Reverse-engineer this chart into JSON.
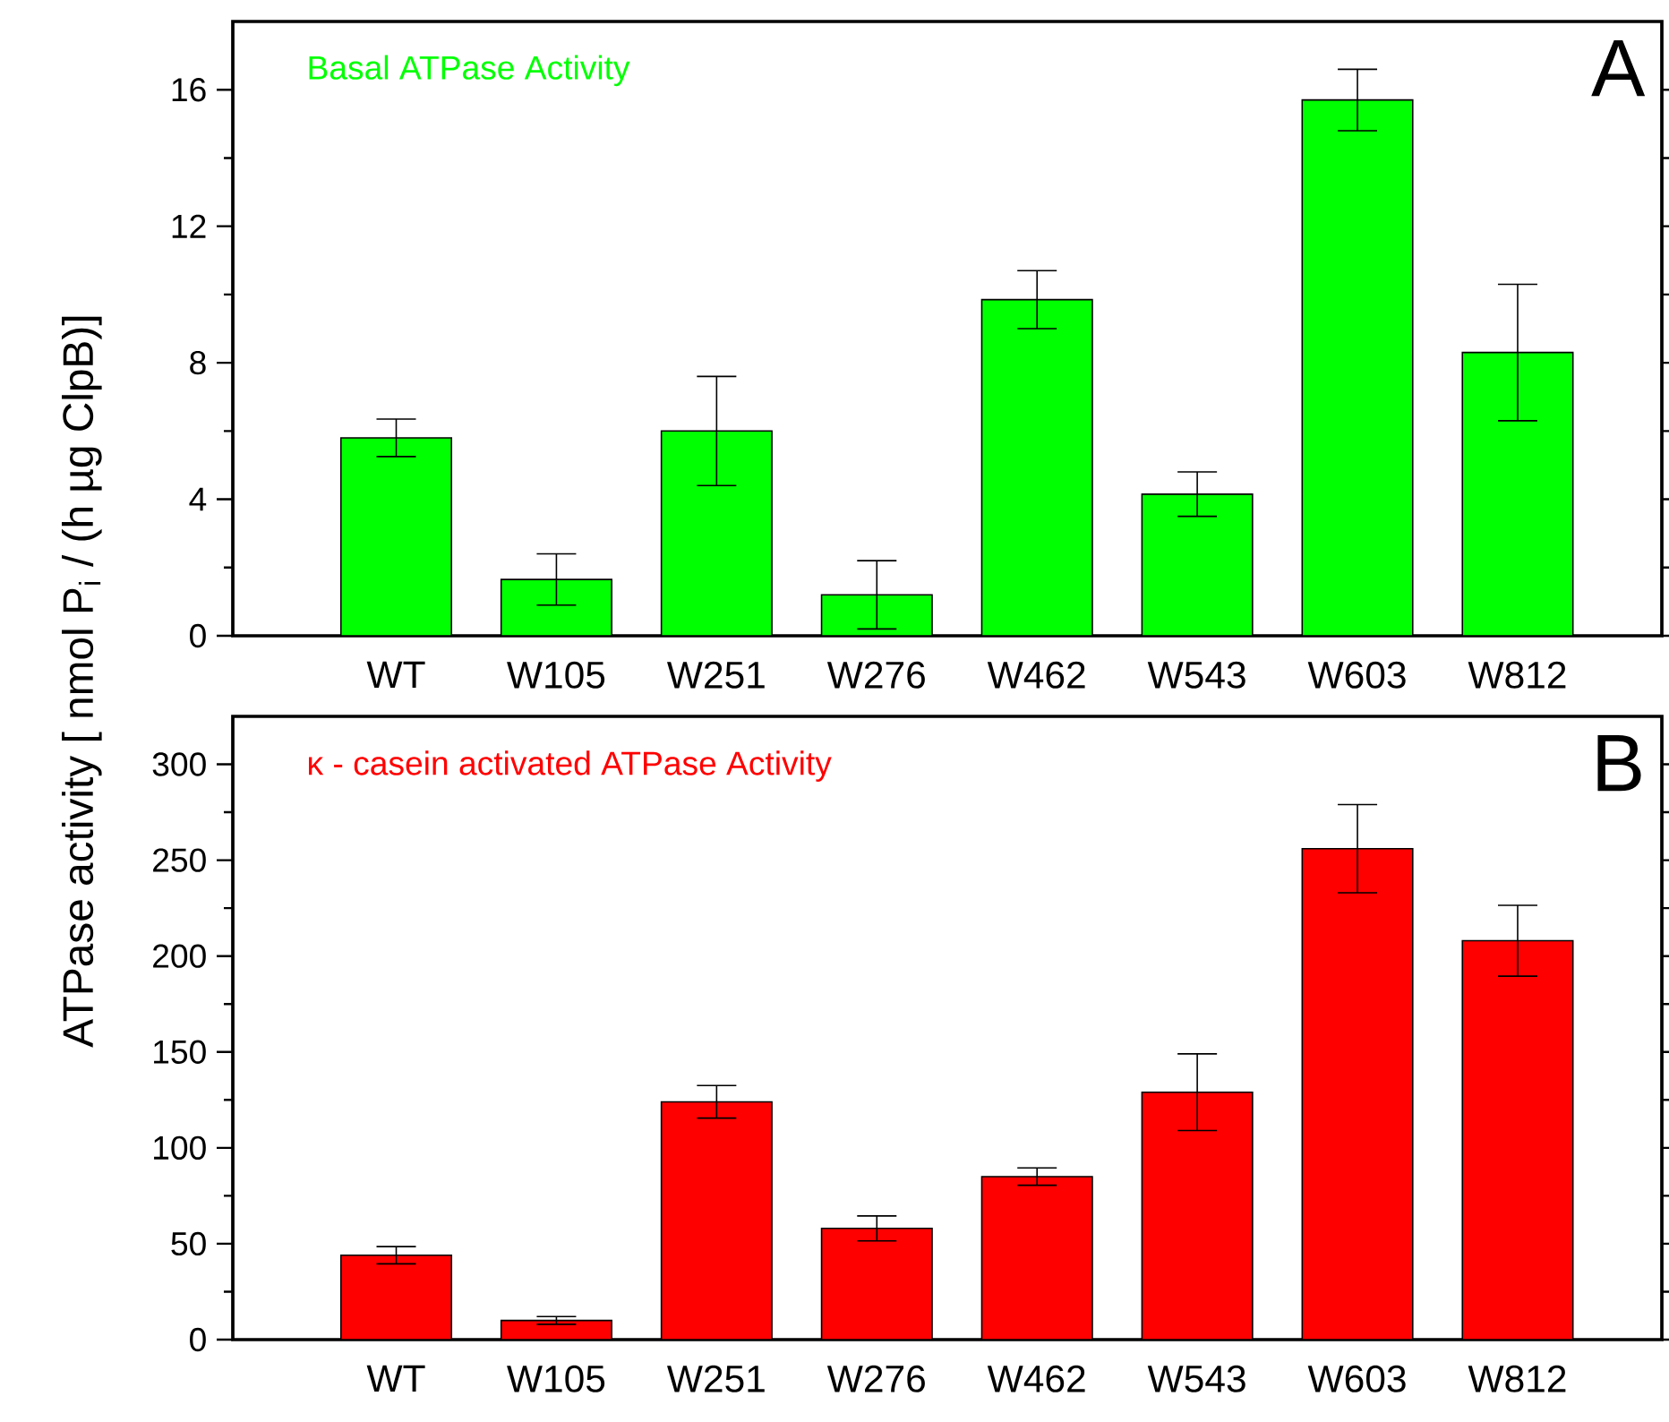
{
  "chart_data": [
    {
      "type": "bar",
      "title": "Basal ATPase Activity",
      "ylabel": "ATPase activity [ nmol P$_{i}$ / (h  µg ClpB)]",
      "categories": [
        "WT",
        "W105",
        "W251",
        "W276",
        "W462",
        "W543",
        "W603",
        "W812"
      ],
      "series": [
        {
          "color": "#00ff00",
          "values": [
            5.8,
            1.65,
            6.0,
            1.2,
            9.85,
            4.15,
            15.7,
            8.3
          ],
          "errors": [
            0.55,
            0.75,
            1.6,
            1.0,
            0.85,
            0.65,
            0.9,
            2.0
          ]
        }
      ],
      "ylim": [
        0,
        18
      ],
      "yticks": [
        0,
        4,
        8,
        12,
        16
      ],
      "annotations": [
        "A"
      ]
    },
    {
      "type": "bar",
      "title": "κ - casein activated ATPase Activity",
      "categories": [
        "WT",
        "W105",
        "W251",
        "W276",
        "W462",
        "W543",
        "W603",
        "W812"
      ],
      "series": [
        {
          "color": "#ff0000",
          "values": [
            44,
            10,
            124,
            58,
            85,
            129,
            256,
            208
          ],
          "errors": [
            4.5,
            2,
            8.5,
            6.5,
            4.5,
            20,
            23,
            18.5
          ]
        }
      ],
      "ylim": [
        0,
        325
      ],
      "yticks": [
        0,
        50,
        100,
        150,
        200,
        250,
        300
      ],
      "annotations": [
        "B"
      ]
    }
  ]
}
